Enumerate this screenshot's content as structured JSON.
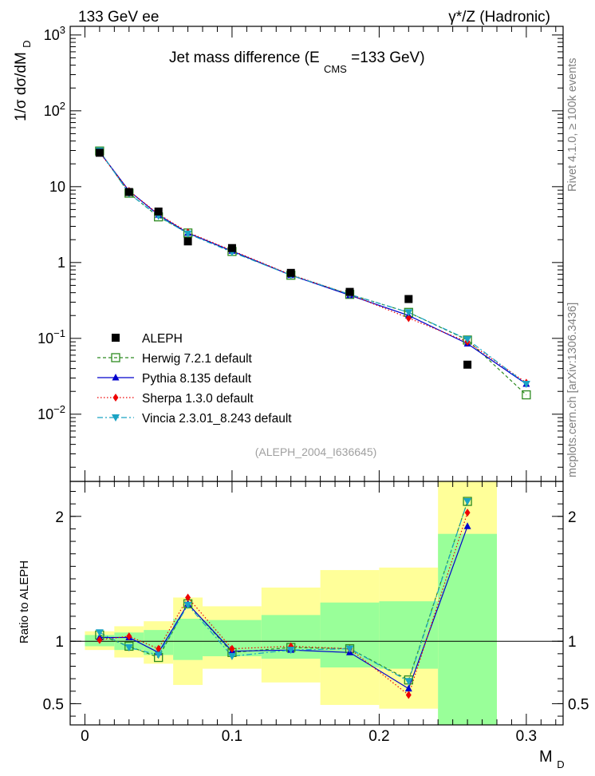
{
  "header": {
    "left": "133 GeV ee",
    "right": "γ*/Z (Hadronic)"
  },
  "side_labels": {
    "rivet": "Rivet 4.1.0, ≥ 100k events",
    "mcplots": "mcplots.cern.ch [arXiv:1306.3436]"
  },
  "watermark": "(ALEPH_2004_I636645)",
  "colors": {
    "data": "#000000",
    "herwig": "#2e8b20",
    "pythia": "#0000cc",
    "sherpa": "#ee0000",
    "vincia": "#1aa3c4",
    "band_outer": "#ffff99",
    "band_inner": "#99ff99"
  },
  "chart_data": [
    {
      "type": "scatter",
      "panel": "main",
      "title_main": "Jet mass difference (E",
      "title_sub": "CMS",
      "title_tail": "=133 GeV)",
      "ylabel": "1/σ dσ/dM",
      "ylabel_sub": "D",
      "yscale": "log",
      "ylim": [
        0.0013,
        1300
      ],
      "xlim": [
        -0.01,
        0.325
      ],
      "yticks": [
        {
          "v": 1000,
          "base": "10",
          "exp": "3"
        },
        {
          "v": 100,
          "base": "10",
          "exp": "2"
        },
        {
          "v": 10,
          "base": "10",
          "exp": ""
        },
        {
          "v": 1,
          "base": "1",
          "exp": ""
        },
        {
          "v": 0.1,
          "base": "10",
          "exp": "−1"
        },
        {
          "v": 0.01,
          "base": "10",
          "exp": "−2"
        }
      ],
      "legend": [
        "ALEPH",
        "Herwig 7.2.1 default",
        "Pythia 8.135 default",
        "Sherpa 1.3.0 default",
        "Vincia 2.3.01_8.243 default"
      ],
      "data": {
        "name": "ALEPH",
        "x": [
          0.01,
          0.03,
          0.05,
          0.07,
          0.1,
          0.14,
          0.18,
          0.22,
          0.26
        ],
        "y": [
          28.0,
          8.5,
          4.7,
          1.9,
          1.55,
          0.73,
          0.41,
          0.33,
          0.045
        ]
      },
      "series": [
        {
          "name": "Herwig 7.2.1 default",
          "key": "herwig",
          "x": [
            0.01,
            0.03,
            0.05,
            0.07,
            0.1,
            0.14,
            0.18,
            0.22,
            0.26,
            0.3
          ],
          "y": [
            29.5,
            8.2,
            4.0,
            2.45,
            1.4,
            0.68,
            0.38,
            0.22,
            0.095,
            0.018
          ]
        },
        {
          "name": "Pythia 8.135 default",
          "key": "pythia",
          "x": [
            0.01,
            0.03,
            0.05,
            0.07,
            0.1,
            0.14,
            0.18,
            0.22,
            0.26,
            0.3
          ],
          "y": [
            28.7,
            8.8,
            4.25,
            2.45,
            1.42,
            0.68,
            0.37,
            0.2,
            0.085,
            0.025
          ]
        },
        {
          "name": "Sherpa 1.3.0 default",
          "key": "sherpa",
          "x": [
            0.01,
            0.03,
            0.05,
            0.07,
            0.1,
            0.14,
            0.18,
            0.22,
            0.26,
            0.3
          ],
          "y": [
            28.2,
            8.8,
            4.35,
            2.5,
            1.44,
            0.69,
            0.38,
            0.185,
            0.09,
            0.026
          ]
        },
        {
          "name": "Vincia 2.3.01_8.243 default",
          "key": "vincia",
          "x": [
            0.01,
            0.03,
            0.05,
            0.07,
            0.1,
            0.14,
            0.18,
            0.22,
            0.26,
            0.3
          ],
          "y": [
            29.8,
            8.1,
            4.1,
            2.4,
            1.37,
            0.68,
            0.38,
            0.22,
            0.097,
            0.025
          ]
        }
      ]
    },
    {
      "type": "line",
      "panel": "ratio",
      "ylabel": "Ratio to ALEPH",
      "xlabel": "M",
      "xlabel_sub": "D",
      "xlim": [
        -0.01,
        0.325
      ],
      "ylim": [
        0.33,
        2.28
      ],
      "yticks": [
        0.5,
        1,
        2
      ],
      "ytick_labels": [
        "0.5",
        "1",
        "2"
      ],
      "xticks": [
        0,
        0.1,
        0.2,
        0.3
      ],
      "xtick_labels": [
        "0",
        "0.1",
        "0.2",
        "0.3"
      ],
      "bands": [
        {
          "x0": 0.0,
          "x1": 0.02,
          "outer": [
            0.93,
            1.08
          ],
          "inner": [
            0.96,
            1.05
          ]
        },
        {
          "x0": 0.02,
          "x1": 0.04,
          "outer": [
            0.87,
            1.12
          ],
          "inner": [
            0.93,
            1.07
          ]
        },
        {
          "x0": 0.04,
          "x1": 0.06,
          "outer": [
            0.82,
            1.16
          ],
          "inner": [
            0.89,
            1.09
          ]
        },
        {
          "x0": 0.06,
          "x1": 0.08,
          "outer": [
            0.65,
            1.35
          ],
          "inner": [
            0.85,
            1.18
          ]
        },
        {
          "x0": 0.08,
          "x1": 0.12,
          "outer": [
            0.78,
            1.28
          ],
          "inner": [
            0.88,
            1.17
          ]
        },
        {
          "x0": 0.12,
          "x1": 0.16,
          "outer": [
            0.67,
            1.43
          ],
          "inner": [
            0.86,
            1.21
          ]
        },
        {
          "x0": 0.16,
          "x1": 0.2,
          "outer": [
            0.49,
            1.57
          ],
          "inner": [
            0.79,
            1.31
          ]
        },
        {
          "x0": 0.2,
          "x1": 0.24,
          "outer": [
            0.46,
            1.59
          ],
          "inner": [
            0.78,
            1.32
          ]
        },
        {
          "x0": 0.24,
          "x1": 0.28,
          "outer": [
            0.0,
            2.3
          ],
          "inner": [
            0.0,
            1.86
          ]
        }
      ],
      "x": [
        0.01,
        0.03,
        0.05,
        0.07,
        0.1,
        0.14,
        0.18,
        0.22,
        0.26
      ],
      "series": [
        {
          "name": "Herwig 7.2.1 default",
          "key": "herwig",
          "values": [
            1.05,
            0.96,
            0.87,
            1.3,
            0.91,
            0.95,
            0.94,
            0.69,
            2.12
          ]
        },
        {
          "name": "Pythia 8.135 default",
          "key": "pythia",
          "values": [
            1.03,
            1.03,
            0.91,
            1.3,
            0.92,
            0.93,
            0.91,
            0.62,
            1.92
          ]
        },
        {
          "name": "Sherpa 1.3.0 default",
          "key": "sherpa",
          "values": [
            1.01,
            1.04,
            0.94,
            1.35,
            0.94,
            0.96,
            0.94,
            0.57,
            2.03
          ]
        },
        {
          "name": "Vincia 2.3.01_8.243 default",
          "key": "vincia",
          "values": [
            1.07,
            0.95,
            0.89,
            1.29,
            0.88,
            0.93,
            0.94,
            0.68,
            2.12
          ]
        }
      ]
    }
  ]
}
